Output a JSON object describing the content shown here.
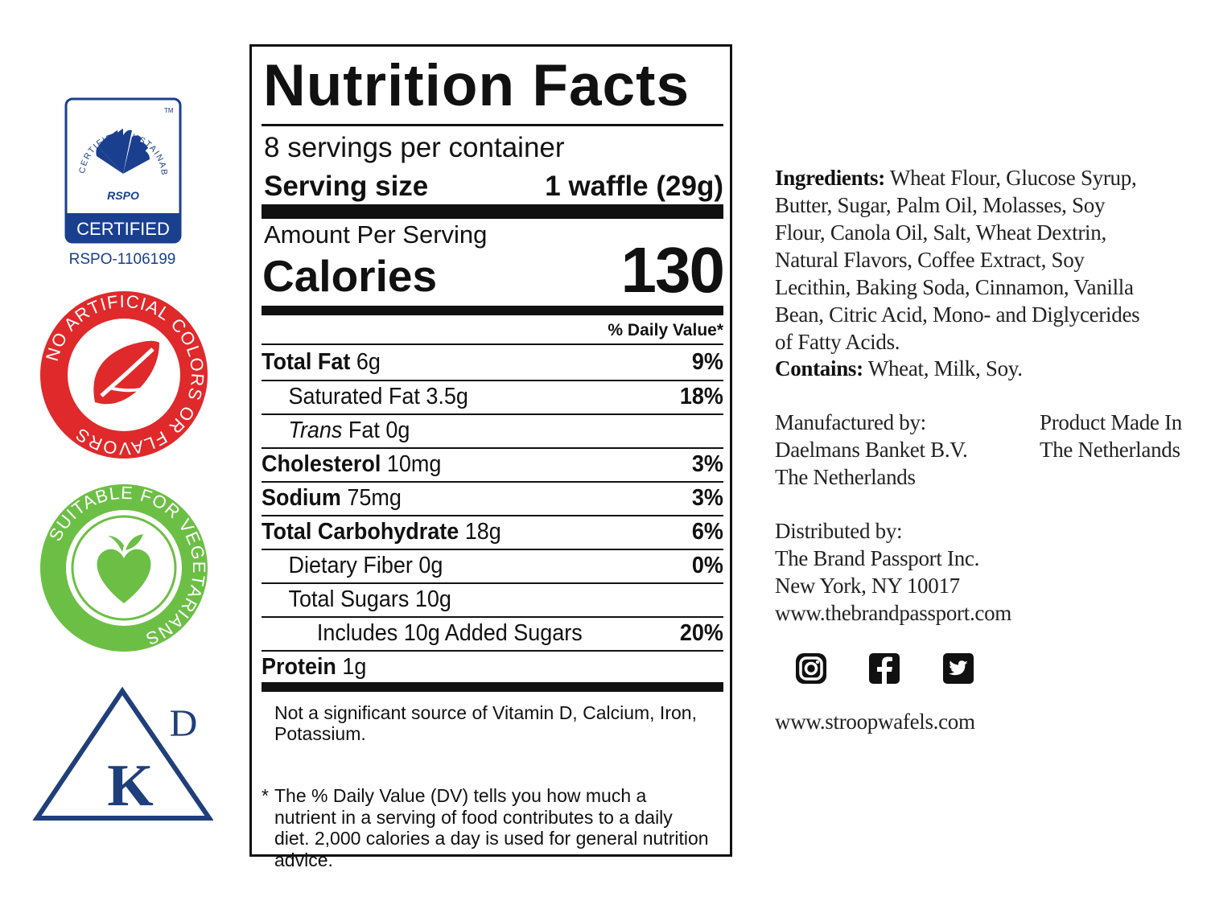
{
  "badges": {
    "rspo": {
      "arc_text": "CERTIFIED SUSTAINABLE PALM OIL",
      "trademark": "TM",
      "mark": "RSPO",
      "certified_label": "CERTIFIED",
      "license": "RSPO-1106199",
      "color": "#1a3f8f"
    },
    "no_artificial": {
      "text": "NO ARTIFICIAL COLORS OR FLAVORS",
      "color": "#e0292b",
      "icon": "leaf-icon"
    },
    "vegetarian": {
      "text": "SUITABLE FOR VEGETARIANS",
      "color": "#6cbf45",
      "icon": "heart-apple-icon"
    },
    "kosher": {
      "letter_k": "K",
      "letter_d": "D",
      "color": "#1f3f7a"
    }
  },
  "nutrition": {
    "title": "Nutrition Facts",
    "servings_per_container": "8 servings per container",
    "serving_size_label": "Serving size",
    "serving_size_value": "1 waffle (29g)",
    "amount_per_serving": "Amount Per Serving",
    "calories_label": "Calories",
    "calories_value": "130",
    "dv_header": "% Daily Value*",
    "rows": [
      {
        "bold": "Total Fat",
        "text": " 6g",
        "pct": "9%"
      },
      {
        "bold": "",
        "text": "Saturated Fat 3.5g",
        "pct": "18%"
      },
      {
        "italic": "Trans",
        "text": " Fat 0g",
        "pct": ""
      },
      {
        "bold": "Cholesterol",
        "text": " 10mg",
        "pct": "3%"
      },
      {
        "bold": "Sodium",
        "text": " 75mg",
        "pct": "3%"
      },
      {
        "bold": "Total Carbohydrate",
        "text": " 18g",
        "pct": "6%"
      },
      {
        "bold": "",
        "text": "Dietary Fiber 0g",
        "pct": "0%"
      },
      {
        "bold": "",
        "text": "Total Sugars 10g",
        "pct": ""
      },
      {
        "bold": "",
        "text": "Includes 10g Added Sugars",
        "pct": "20%"
      },
      {
        "bold": "Protein",
        "text": " 1g",
        "pct": ""
      }
    ],
    "micronutrient_note": "Not a significant source of Vitamin D, Calcium, Iron, Potassium.",
    "dv_note_star": "*",
    "dv_note": "The % Daily Value (DV) tells you how much a nutrient in a serving of food contributes to a daily diet. 2,000 calories a day is used for general nutrition advice."
  },
  "info": {
    "ingredients_label": "Ingredients:",
    "ingredients": " Wheat Flour, Glucose Syrup, Butter, Sugar, Palm Oil, Molasses, Soy Flour, Canola Oil, Salt, Wheat Dextrin, Natural Flavors, Coffee Extract, Soy Lecithin, Baking Soda, Cinnamon, Vanilla Bean, Citric Acid, Mono- and Diglycerides of Fatty Acids.",
    "contains_label": "Contains:",
    "contains": " Wheat, Milk, Soy.",
    "manufacturer_label": "Manufactured by:",
    "manufacturer_name": "Daelmans Banket B.V.",
    "manufacturer_country": "The Netherlands",
    "origin_line1": "Product Made In",
    "origin_line2": "The Netherlands",
    "distributor_label": "Distributed by:",
    "distributor_name": "The Brand Passport Inc.",
    "distributor_city": "New York, NY 10017",
    "distributor_web": "www.thebrandpassport.com",
    "social_icons": [
      "instagram-icon",
      "facebook-icon",
      "twitter-icon"
    ],
    "website": "www.stroopwafels.com"
  }
}
